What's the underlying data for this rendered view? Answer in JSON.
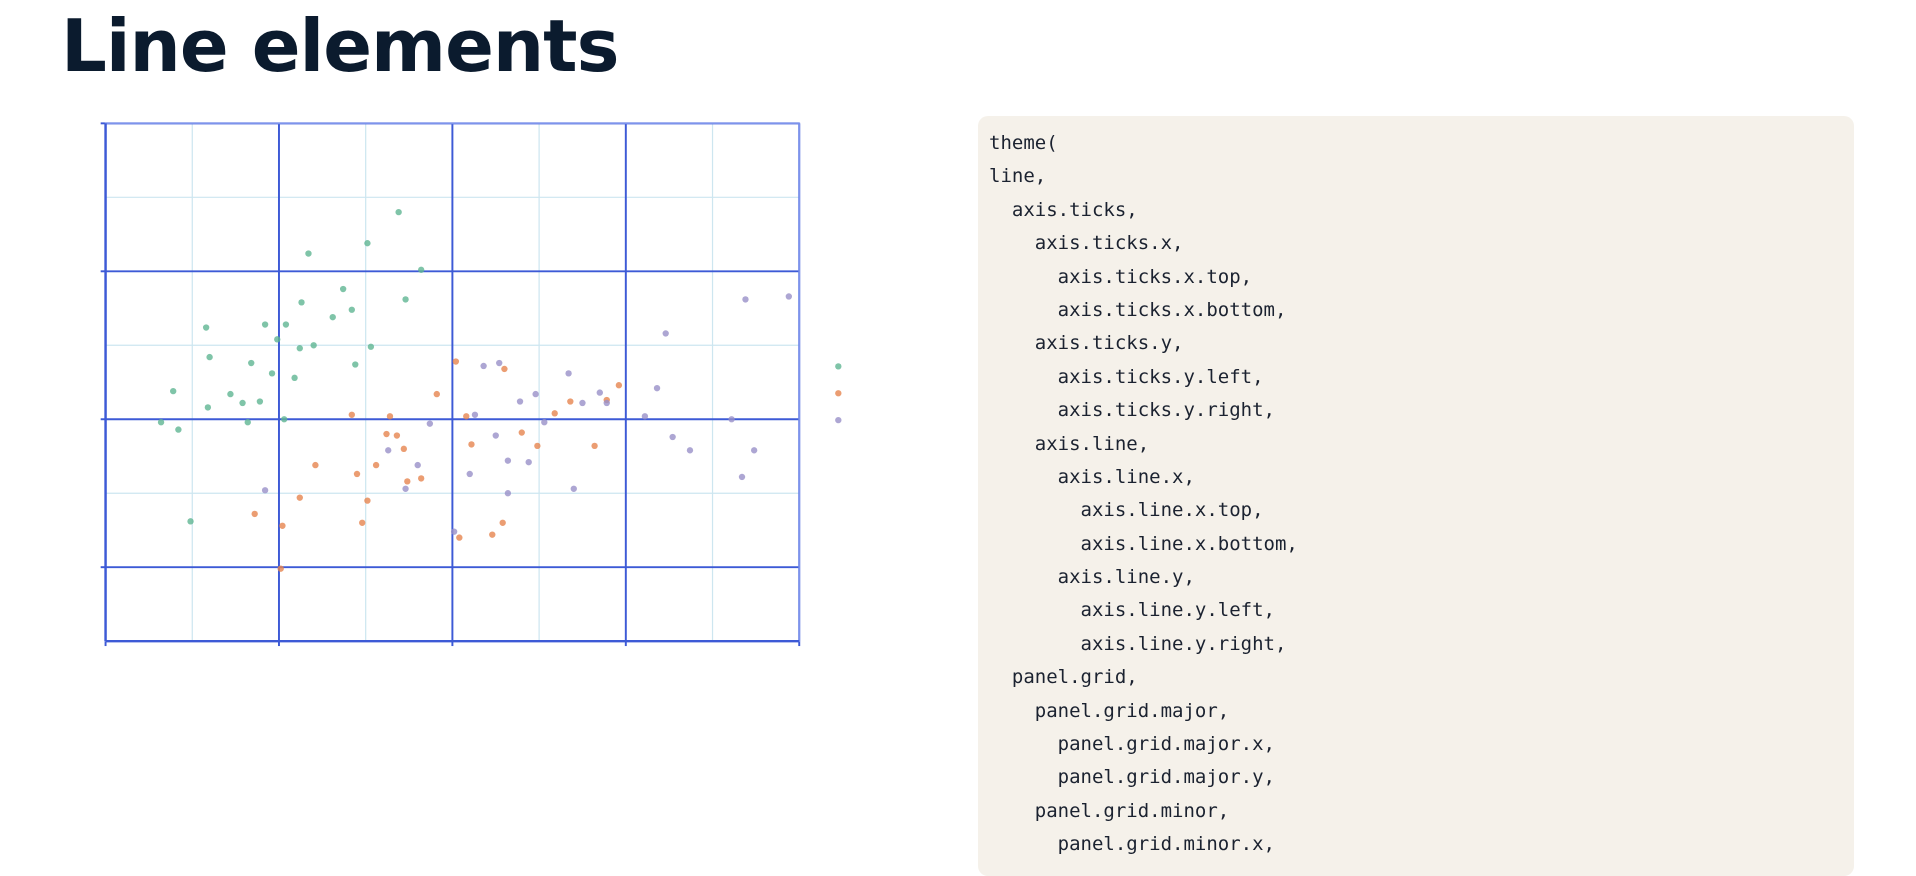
{
  "header": {
    "title": "Line elements"
  },
  "code": {
    "lines": [
      "theme(",
      "line,",
      "  axis.ticks,",
      "    axis.ticks.x,",
      "      axis.ticks.x.top,",
      "      axis.ticks.x.bottom,",
      "    axis.ticks.y,",
      "      axis.ticks.y.left,",
      "      axis.ticks.y.right,",
      "    axis.line,",
      "      axis.line.x,",
      "        axis.line.x.top,",
      "        axis.line.x.bottom,",
      "      axis.line.y,",
      "        axis.line.y.left,",
      "        axis.line.y.right,",
      "  panel.grid,",
      "    panel.grid.major,",
      "      panel.grid.major.x,",
      "      panel.grid.major.y,",
      "    panel.grid.minor,",
      "      panel.grid.minor.x,"
    ]
  },
  "chart_data": {
    "type": "scatter",
    "xlim": [
      0,
      4
    ],
    "ylim": [
      -0.5,
      3
    ],
    "xticks": [
      0,
      1,
      2,
      3,
      4
    ],
    "yticks": [
      0,
      1,
      2,
      3
    ],
    "xminor": [
      0.5,
      1.5,
      2.5,
      3.5
    ],
    "yminor": [
      -0.5,
      0.5,
      1.5,
      2.5
    ],
    "grid": true,
    "series": [
      {
        "color": "#5fb592",
        "x": [
          0.32,
          0.39,
          0.42,
          0.49,
          0.58,
          0.6,
          0.59,
          0.72,
          0.79,
          0.82,
          0.84,
          0.89,
          0.92,
          0.96,
          0.99,
          1.03,
          1.04,
          1.09,
          1.12,
          1.13,
          1.17,
          1.2,
          1.31,
          1.37,
          1.42,
          1.44,
          1.51,
          1.53,
          1.69,
          1.73,
          1.82
        ],
        "y": [
          0.98,
          1.19,
          0.93,
          0.31,
          1.62,
          1.42,
          1.08,
          1.17,
          1.11,
          0.98,
          1.38,
          1.12,
          1.64,
          1.31,
          1.54,
          1.0,
          1.64,
          1.28,
          1.48,
          1.79,
          2.12,
          1.5,
          1.69,
          1.88,
          1.74,
          1.37,
          2.19,
          1.49,
          2.4,
          1.81,
          2.01
        ]
      },
      {
        "color": "#e6844f",
        "x": [
          0.86,
          1.01,
          1.02,
          1.12,
          1.21,
          1.42,
          1.45,
          1.48,
          1.51,
          1.56,
          1.62,
          1.64,
          1.68,
          1.72,
          1.74,
          1.82,
          1.91,
          2.02,
          2.04,
          2.08,
          2.11,
          2.23,
          2.29,
          2.3,
          2.4,
          2.49,
          2.59,
          2.68,
          2.82,
          2.89,
          2.96
        ],
        "y": [
          0.36,
          -0.01,
          0.28,
          0.47,
          0.69,
          1.03,
          0.63,
          0.3,
          0.45,
          0.69,
          0.9,
          1.02,
          0.89,
          0.8,
          0.58,
          0.6,
          1.17,
          1.39,
          0.2,
          1.02,
          0.83,
          0.22,
          0.3,
          1.34,
          0.91,
          0.82,
          1.04,
          1.12,
          0.82,
          1.13,
          1.23
        ]
      },
      {
        "color": "#9990c8",
        "x": [
          0.92,
          1.63,
          1.73,
          1.8,
          1.87,
          2.01,
          2.1,
          2.13,
          2.18,
          2.25,
          2.27,
          2.32,
          2.32,
          2.39,
          2.44,
          2.48,
          2.53,
          2.67,
          2.7,
          2.75,
          2.85,
          2.89,
          3.11,
          3.18,
          3.23,
          3.27,
          3.37,
          3.61,
          3.67,
          3.69,
          3.74,
          3.94
        ],
        "y": [
          0.52,
          0.79,
          0.53,
          0.69,
          0.97,
          0.24,
          0.63,
          1.03,
          1.36,
          0.89,
          1.38,
          0.72,
          0.5,
          1.12,
          0.71,
          1.17,
          0.98,
          1.31,
          0.53,
          1.11,
          1.18,
          1.11,
          1.02,
          1.21,
          1.58,
          0.88,
          0.79,
          1.0,
          0.61,
          1.81,
          0.79,
          1.83
        ]
      }
    ]
  }
}
